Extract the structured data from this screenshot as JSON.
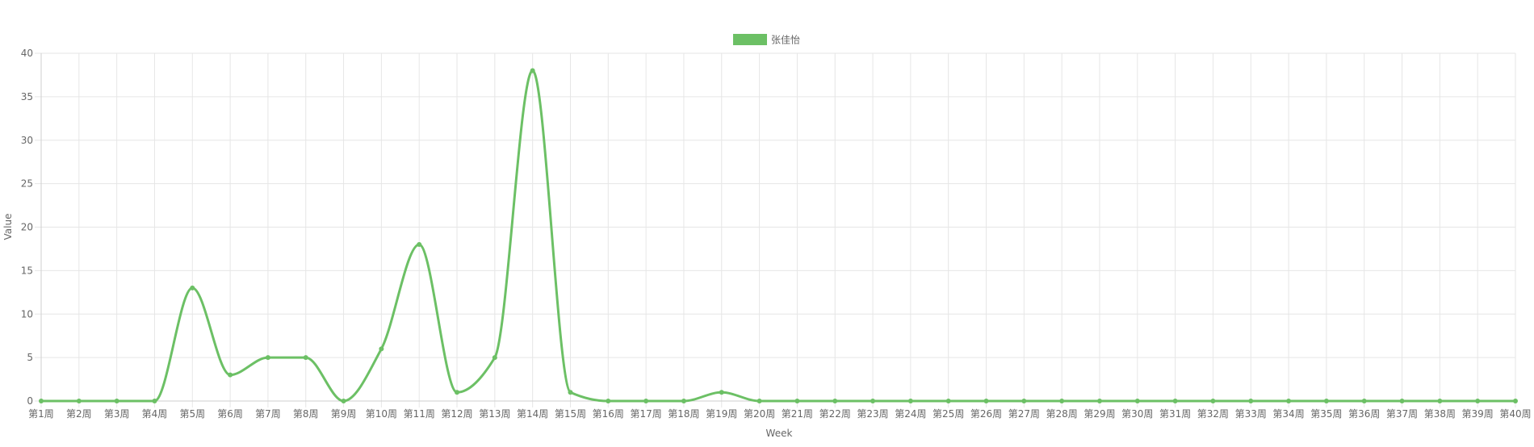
{
  "chart_data": {
    "type": "line",
    "title": "",
    "xlabel": "Week",
    "ylabel": "Value",
    "ylim": [
      0,
      40
    ],
    "y_ticks": [
      0,
      5,
      10,
      15,
      20,
      25,
      30,
      35,
      40
    ],
    "grid": true,
    "legend_position": "top-center",
    "categories": [
      "第1周",
      "第2周",
      "第3周",
      "第4周",
      "第5周",
      "第6周",
      "第7周",
      "第8周",
      "第9周",
      "第10周",
      "第11周",
      "第12周",
      "第13周",
      "第14周",
      "第15周",
      "第16周",
      "第17周",
      "第18周",
      "第19周",
      "第20周",
      "第21周",
      "第22周",
      "第23周",
      "第24周",
      "第25周",
      "第26周",
      "第27周",
      "第28周",
      "第29周",
      "第30周",
      "第31周",
      "第32周",
      "第33周",
      "第34周",
      "第35周",
      "第36周",
      "第37周",
      "第38周",
      "第39周",
      "第40周"
    ],
    "series": [
      {
        "name": "张佳怡",
        "color": "#6cc065",
        "values": [
          0,
          0,
          0,
          0,
          13,
          3,
          5,
          5,
          0,
          6,
          18,
          1,
          5,
          38,
          1,
          0,
          0,
          0,
          1,
          0,
          0,
          0,
          0,
          0,
          0,
          0,
          0,
          0,
          0,
          0,
          0,
          0,
          0,
          0,
          0,
          0,
          0,
          0,
          0,
          0
        ]
      }
    ]
  }
}
